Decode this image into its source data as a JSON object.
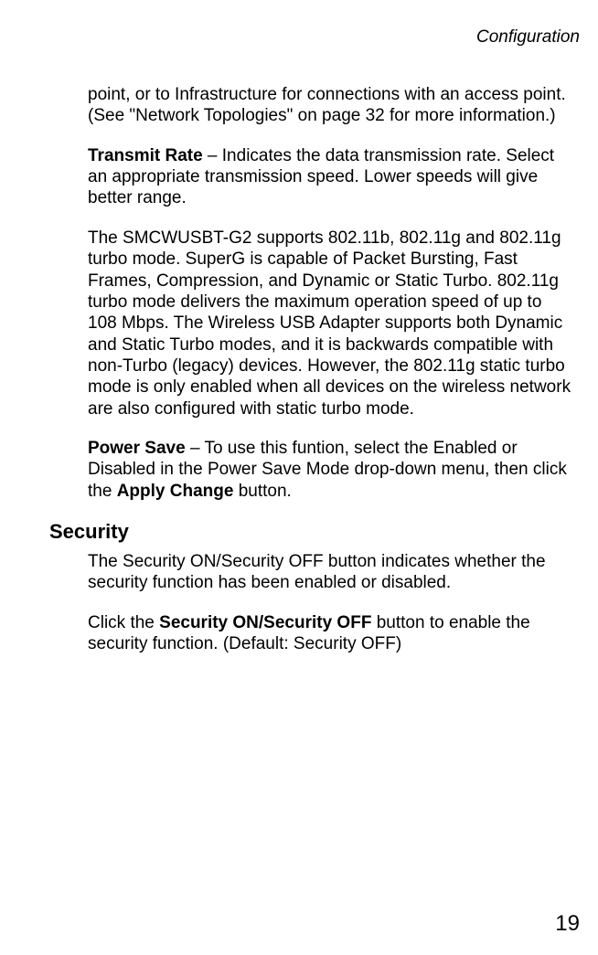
{
  "header": {
    "title": "Configuration"
  },
  "para1": "point, or to Infrastructure for connections with an access point. (See  \"Network Topologies\" on page 32 for more information.)",
  "para2_lead": "Transmit Rate",
  "para2_rest": " – Indicates the data transmission rate. Select an appropriate transmission speed. Lower speeds will give better range.",
  "para3": "The SMCWUSBT-G2 supports 802.11b, 802.11g and 802.11g turbo mode. SuperG is capable of Packet Bursting, Fast Frames, Compression, and Dynamic or Static Turbo. 802.11g turbo mode delivers the maximum operation speed of up to 108 Mbps. The Wireless USB  Adapter supports both Dynamic and Static Turbo modes, and it is backwards compatible with non-Turbo (legacy) devices. However, the 802.11g static turbo mode is only enabled when all devices on the wireless network are also configured with static turbo mode.",
  "para4_lead": "Power Save",
  "para4_mid": " – To use this funtion, select the Enabled or Disabled in the Power Save Mode drop-down menu, then click the ",
  "para4_bold2": "Apply Change",
  "para4_end": " button.",
  "security_heading": "Security",
  "para5": "The Security ON/Security OFF button indicates whether the security function has been enabled or disabled.",
  "para6_a": "Click the ",
  "para6_bold": "Security ON/Security OFF",
  "para6_b": " button to enable the security function.  (Default: Security OFF)",
  "page_number": "19"
}
